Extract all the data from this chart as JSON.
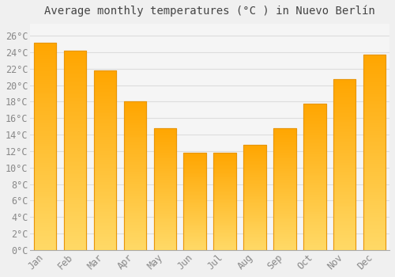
{
  "title": "Average monthly temperatures (°C ) in Nuevo Berlín",
  "months": [
    "Jan",
    "Feb",
    "Mar",
    "Apr",
    "May",
    "Jun",
    "Jul",
    "Aug",
    "Sep",
    "Oct",
    "Nov",
    "Dec"
  ],
  "values": [
    25.2,
    24.2,
    21.8,
    18.0,
    14.8,
    11.8,
    11.8,
    12.8,
    14.8,
    17.8,
    20.7,
    23.7
  ],
  "bar_color_top": "#FFD966",
  "bar_color_bottom": "#FFA500",
  "bar_edge_color": "#E8960A",
  "background_color": "#F0F0F0",
  "plot_bg_color": "#F5F5F5",
  "grid_color": "#DDDDDD",
  "yticks": [
    0,
    2,
    4,
    6,
    8,
    10,
    12,
    14,
    16,
    18,
    20,
    22,
    24,
    26
  ],
  "ylim": [
    0,
    27.5
  ],
  "title_fontsize": 10,
  "tick_fontsize": 8.5,
  "font_family": "monospace"
}
